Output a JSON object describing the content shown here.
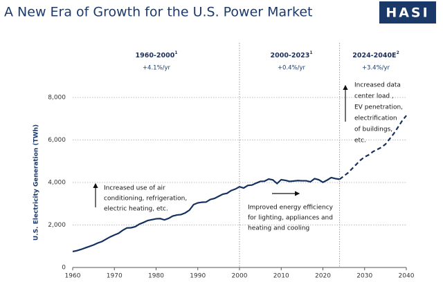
{
  "logo": "HASI",
  "chart_data": {
    "type": "line",
    "title": "A New Era of Growth for the U.S. Power Market",
    "y_label": "U.S. Electricity Generation (TWh)",
    "x": [
      1960,
      1961,
      1962,
      1963,
      1964,
      1965,
      1966,
      1967,
      1968,
      1969,
      1970,
      1971,
      1972,
      1973,
      1974,
      1975,
      1976,
      1977,
      1978,
      1979,
      1980,
      1981,
      1982,
      1983,
      1984,
      1985,
      1986,
      1987,
      1988,
      1989,
      1990,
      1991,
      1992,
      1993,
      1994,
      1995,
      1996,
      1997,
      1998,
      1999,
      2000,
      2001,
      2002,
      2003,
      2004,
      2005,
      2006,
      2007,
      2008,
      2009,
      2010,
      2011,
      2012,
      2013,
      2014,
      2015,
      2016,
      2017,
      2018,
      2019,
      2020,
      2021,
      2022,
      2023,
      2024,
      2025,
      2026,
      2027,
      2028,
      2029,
      2030,
      2031,
      2032,
      2033,
      2034,
      2035,
      2036,
      2037,
      2038,
      2039,
      2040
    ],
    "series": [
      {
        "color": "#14305e",
        "dashed": false,
        "values": [
          750,
          790,
          850,
          920,
          990,
          1060,
          1150,
          1220,
          1330,
          1440,
          1530,
          1610,
          1750,
          1860,
          1870,
          1920,
          2040,
          2120,
          2210,
          2250,
          2290,
          2300,
          2240,
          2310,
          2420,
          2470,
          2490,
          2570,
          2700,
          2960,
          3040,
          3070,
          3080,
          3200,
          3250,
          3350,
          3450,
          3490,
          3620,
          3690,
          3800,
          3740,
          3860,
          3880,
          3970,
          4050,
          4060,
          4160,
          4120,
          3950,
          4130,
          4100,
          4050,
          4070,
          4090,
          4080,
          4080,
          4030,
          4180,
          4130,
          4010,
          4110,
          4230,
          4180,
          4150,
          null,
          null,
          null,
          null,
          null,
          null,
          null,
          null,
          null,
          null,
          null,
          null,
          null,
          null,
          null,
          null
        ]
      },
      {
        "color": "#14305e",
        "dashed": true,
        "values": [
          null,
          null,
          null,
          null,
          null,
          null,
          null,
          null,
          null,
          null,
          null,
          null,
          null,
          null,
          null,
          null,
          null,
          null,
          null,
          null,
          null,
          null,
          null,
          null,
          null,
          null,
          null,
          null,
          null,
          null,
          null,
          null,
          null,
          null,
          null,
          null,
          null,
          null,
          null,
          null,
          null,
          null,
          null,
          null,
          null,
          null,
          null,
          null,
          null,
          null,
          null,
          null,
          null,
          null,
          null,
          null,
          null,
          null,
          null,
          null,
          null,
          null,
          null,
          null,
          4150,
          4300,
          4450,
          4650,
          4850,
          5050,
          5200,
          5300,
          5450,
          5550,
          5650,
          5800,
          6050,
          6300,
          6600,
          6900,
          7150
        ]
      }
    ],
    "xlim": [
      1960,
      2040
    ],
    "xticks": [
      1960,
      1970,
      1980,
      1990,
      2000,
      2010,
      2020,
      2030,
      2040
    ],
    "ylim": [
      0,
      8000
    ],
    "yticks": [
      0,
      {
        "value": 2000,
        "label": "2,000"
      },
      {
        "value": 4000,
        "label": "4,000"
      },
      {
        "value": 6000,
        "label": "6,000"
      },
      {
        "value": 8000,
        "label": "8,000"
      }
    ],
    "grid": true,
    "dividers": [
      2000,
      2024
    ],
    "periods": [
      {
        "label": "1960-2000",
        "note": "1",
        "growth": "+4.1%/yr"
      },
      {
        "label": "2000-2023",
        "note": "1",
        "growth": "+0.4%/yr"
      },
      {
        "label": "2024-2040E",
        "note": "2",
        "growth": "+3.4%/yr"
      }
    ],
    "annotations": [
      {
        "lines": [
          "Increased use of air",
          "conditioning, refrigeration,",
          "electric heating, etc."
        ]
      },
      {
        "lines": [
          "Improved energy efficiency",
          "for lighting, appliances and",
          "heating and cooling"
        ]
      },
      {
        "lines": [
          "Increased data",
          "center load ,",
          "EV penetration,",
          "electrification",
          "of buildings,",
          "etc."
        ]
      }
    ]
  }
}
